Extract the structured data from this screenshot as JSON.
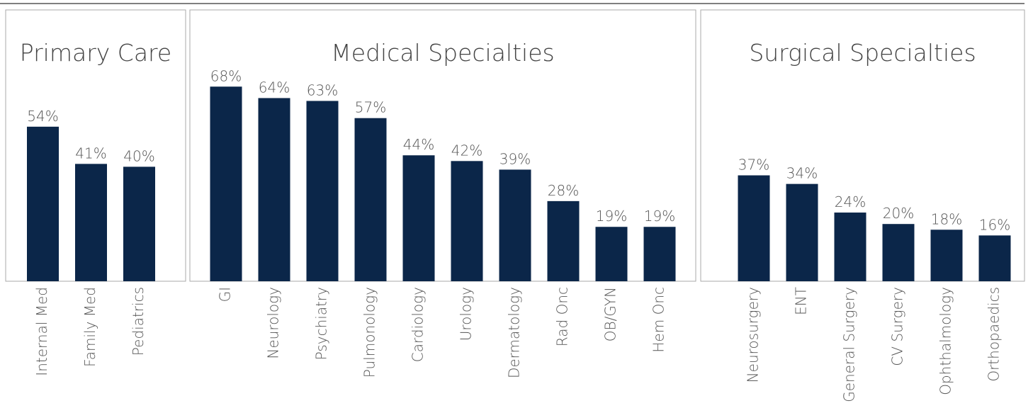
{
  "chart_data": [
    {
      "type": "bar",
      "title": "Primary Care",
      "color": "#0b2649",
      "categories": [
        "Internal Med",
        "Family Med",
        "Pediatrics"
      ],
      "values": [
        54,
        41,
        40
      ],
      "value_labels": [
        "54%",
        "41%",
        "40%"
      ]
    },
    {
      "type": "bar",
      "title": "Medical Specialties",
      "color": "#0b2649",
      "categories": [
        "GI",
        "Neurology",
        "Psychiatry",
        "Pulmonology",
        "Cardiology",
        "Urology",
        "Dermatology",
        "Rad Onc",
        "OB/GYN",
        "Hem Onc"
      ],
      "values": [
        68,
        64,
        63,
        57,
        44,
        42,
        39,
        28,
        19,
        19
      ],
      "value_labels": [
        "68%",
        "64%",
        "63%",
        "57%",
        "44%",
        "42%",
        "39%",
        "28%",
        "19%",
        "19%"
      ]
    },
    {
      "type": "bar",
      "title": "Surgical Specialties",
      "color": "#0b2649",
      "categories": [
        "Neurosurgery",
        "ENT",
        "General Surgery",
        "CV Surgery",
        "Ophthalmology",
        "Orthopaedics"
      ],
      "values": [
        37,
        34,
        24,
        20,
        18,
        16
      ],
      "value_labels": [
        "37%",
        "34%",
        "24%",
        "20%",
        "18%",
        "16%"
      ]
    }
  ]
}
